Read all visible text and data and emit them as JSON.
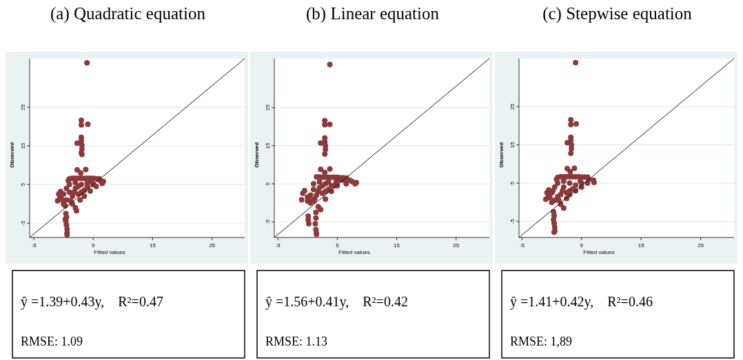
{
  "chart_data": [
    {
      "type": "scatter",
      "title": "(a) Quadratic equation",
      "xlabel": "Fitted values",
      "ylabel": "Observed",
      "xlim": [
        -5.7,
        30.5
      ],
      "ylim": [
        -8.7,
        37.6
      ],
      "xticks": [
        -5,
        5,
        15,
        25
      ],
      "yticks": [
        -5,
        5,
        15,
        25
      ],
      "grid": "y",
      "annotations": [
        "ŷ =1.39+0.43y,    R²=0.47",
        "RMSE: 1.09"
      ],
      "series": [
        {
          "marker": "circle",
          "color": "#8b3a3c",
          "x": [
            3.95,
            3.0,
            3.0,
            4.1,
            2.3,
            3.0,
            3.0,
            3.1,
            3.1,
            3.0,
            3.1,
            2.3,
            3.75,
            2.9,
            0.4,
            0.5,
            0.4,
            0.5,
            0.6,
            0.6,
            0.6,
            0.3,
            -1.0,
            -0.8,
            -0.5,
            -0.6,
            0.0,
            0.3,
            0.5,
            1.0,
            1.5,
            2.0,
            2.5,
            3.0,
            3.5,
            4.0,
            4.5,
            5.0,
            5.5,
            6.0,
            6.7,
            6.5,
            5.5,
            4.5,
            3.5,
            2.8,
            2.2,
            2.0,
            1.5,
            1.0,
            2.0,
            3.0,
            1.5,
            2.5,
            4.0,
            1.0,
            0.5,
            3.5,
            0.0,
            -0.3,
            2.0,
            1.2,
            0.8,
            4.8,
            3.0,
            6.2,
            5.0,
            4.0,
            2.5,
            1.8
          ],
          "values": [
            36.5,
            21.6,
            20.4,
            20.6,
            15.7,
            17.2,
            16.3,
            15.2,
            14.2,
            13.2,
            12.8,
            8.8,
            8.9,
            8.0,
            -2.5,
            -3.5,
            -4.5,
            -5.5,
            -6.5,
            -7.5,
            -8.0,
            -4.0,
            0.8,
            2.5,
            3.2,
            1.5,
            0.0,
            -0.5,
            1.0,
            6.5,
            6.6,
            6.6,
            6.6,
            6.6,
            6.6,
            6.6,
            6.6,
            6.6,
            6.5,
            6.5,
            5.8,
            5.3,
            4.5,
            3.3,
            2.0,
            1.0,
            -1.8,
            -1.0,
            0.0,
            3.0,
            4.0,
            5.0,
            2.0,
            2.5,
            4.5,
            5.0,
            4.0,
            3.5,
            2.5,
            1.2,
            5.5,
            0.8,
            6.0,
            5.5,
            3.0,
            6.0,
            5.0,
            5.5,
            4.5,
            3.0
          ]
        },
        {
          "type": "line",
          "color": "#000000",
          "x": [
            -5.7,
            30.5
          ],
          "values": [
            -8.7,
            37.6
          ]
        }
      ]
    },
    {
      "type": "scatter",
      "title": "(b) Linear equation",
      "xlabel": "Fitted values",
      "ylabel": "Observed",
      "xlim": [
        -5.6,
        30.6
      ],
      "ylim": [
        -9.1,
        37.9
      ],
      "xticks": [
        -5,
        5,
        15,
        25
      ],
      "yticks": [
        -5,
        5,
        15,
        25
      ],
      "grid": "y",
      "annotations": [
        "ŷ =1.56+0.41y,    R²=0.42",
        "RMSE: 1.13"
      ],
      "series": [
        {
          "marker": "circle",
          "color": "#8b3a3c",
          "x": [
            3.75,
            2.9,
            2.9,
            3.75,
            2.2,
            2.9,
            2.9,
            3.0,
            3.0,
            2.9,
            2.2,
            3.75,
            2.9,
            1.4,
            1.4,
            1.3,
            1.4,
            1.5,
            1.5,
            0.1,
            0.1,
            0.2,
            -1.0,
            -0.8,
            -0.5,
            0.0,
            0.5,
            1.0,
            1.5,
            2.0,
            2.5,
            3.0,
            3.5,
            4.0,
            4.5,
            5.0,
            5.5,
            6.0,
            6.5,
            7.0,
            7.5,
            8.2,
            8.0,
            6.5,
            5.0,
            4.0,
            3.0,
            2.2,
            1.8,
            1.0,
            2.0,
            3.0,
            1.5,
            2.5,
            4.0,
            1.0,
            0.5,
            3.5,
            0.0,
            2.0,
            1.2,
            4.8,
            3.0,
            6.0,
            5.5,
            4.5,
            2.5,
            1.8,
            0.3,
            3.5
          ],
          "values": [
            36.3,
            21.6,
            20.5,
            20.6,
            15.7,
            17.0,
            16.0,
            15.0,
            14.0,
            12.8,
            8.8,
            8.9,
            8.0,
            -2.5,
            -4.0,
            -5.5,
            -7.0,
            -8.0,
            -8.3,
            -3.5,
            -4.5,
            -5.5,
            0.8,
            2.5,
            3.2,
            0.5,
            0.0,
            3.5,
            6.8,
            6.8,
            6.7,
            6.7,
            6.7,
            6.7,
            6.7,
            6.7,
            6.6,
            6.6,
            6.5,
            6.0,
            5.6,
            5.3,
            5.0,
            5.0,
            4.5,
            3.0,
            1.0,
            -1.8,
            -1.0,
            0.5,
            4.0,
            5.0,
            2.0,
            2.5,
            4.5,
            5.0,
            2.0,
            3.5,
            1.5,
            5.5,
            1.0,
            5.5,
            3.0,
            6.0,
            6.0,
            4.5,
            4.5,
            3.0,
            1.0,
            5.5
          ]
        },
        {
          "type": "line",
          "color": "#000000",
          "x": [
            -5.6,
            30.6
          ],
          "values": [
            -9.1,
            37.9
          ]
        }
      ]
    },
    {
      "type": "scatter",
      "title": "(c) Stepwise equation",
      "xlabel": "Fitted values",
      "ylabel": "Observed",
      "xlim": [
        -5.5,
        30.6
      ],
      "ylim": [
        -9.2,
        37.6
      ],
      "xticks": [
        -5,
        5,
        15,
        25
      ],
      "yticks": [
        -5,
        5,
        15,
        25
      ],
      "grid": "y",
      "annotations": [
        "ŷ =1.41+0.42y,    R²=0.46",
        "RMSE: 1,89"
      ],
      "series": [
        {
          "marker": "circle",
          "color": "#8b3a3c",
          "x": [
            4.0,
            3.2,
            3.2,
            4.1,
            2.6,
            3.2,
            3.2,
            3.3,
            3.3,
            3.2,
            2.6,
            3.8,
            3.1,
            0.3,
            0.4,
            0.3,
            0.4,
            0.5,
            0.5,
            0.4,
            -1.0,
            -0.8,
            -0.5,
            -0.6,
            0.0,
            0.5,
            1.0,
            1.5,
            2.0,
            2.5,
            3.0,
            3.5,
            4.0,
            4.5,
            5.0,
            5.5,
            6.0,
            7.1,
            7.0,
            6.0,
            5.0,
            4.0,
            3.0,
            2.5,
            2.0,
            1.5,
            1.0,
            2.0,
            3.0,
            1.5,
            2.5,
            4.0,
            1.0,
            0.5,
            3.5,
            0.0,
            -0.3,
            2.0,
            1.2,
            0.8,
            4.8,
            3.0,
            6.2,
            5.0,
            1.8,
            0.2
          ],
          "values": [
            36.5,
            21.6,
            20.3,
            20.5,
            15.6,
            17.0,
            16.2,
            15.0,
            14.0,
            12.8,
            8.8,
            8.9,
            8.0,
            -2.5,
            -3.5,
            -4.5,
            -5.5,
            -6.5,
            -7.5,
            -7.8,
            0.8,
            2.5,
            3.2,
            1.5,
            0.0,
            0.5,
            6.5,
            6.7,
            6.7,
            6.7,
            6.7,
            6.7,
            6.7,
            6.7,
            6.6,
            6.6,
            6.6,
            5.2,
            5.8,
            5.0,
            4.0,
            3.0,
            2.0,
            1.0,
            -1.5,
            -0.5,
            1.5,
            4.0,
            5.0,
            2.0,
            2.5,
            4.5,
            5.0,
            4.0,
            3.5,
            2.5,
            1.2,
            5.5,
            0.5,
            6.0,
            5.5,
            3.0,
            6.0,
            5.0,
            3.0,
            3.0
          ]
        },
        {
          "type": "line",
          "color": "#000000",
          "x": [
            -5.5,
            30.6
          ],
          "values": [
            -9.2,
            37.6
          ]
        }
      ]
    }
  ]
}
